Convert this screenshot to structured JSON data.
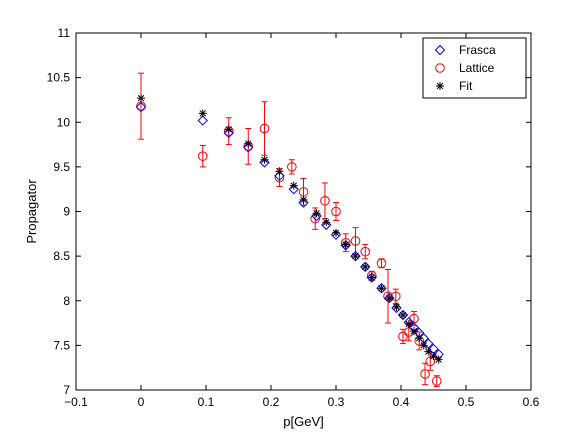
{
  "chart_data": {
    "type": "scatter",
    "xlabel": "p[GeV]",
    "ylabel": "Propagator",
    "xlim": [
      -0.1,
      0.6
    ],
    "ylim": [
      7,
      11
    ],
    "xticks": [
      -0.1,
      0,
      0.1,
      0.2,
      0.3,
      0.4,
      0.5,
      0.6
    ],
    "yticks": [
      7,
      7.5,
      8,
      8.5,
      9,
      9.5,
      10,
      10.5,
      11
    ],
    "xtick_labels": [
      "−0.1",
      "0",
      "0.1",
      "0.2",
      "0.3",
      "0.4",
      "0.5",
      "0.6"
    ],
    "ytick_labels": [
      "7",
      "7.5",
      "8",
      "8.5",
      "9",
      "9.5",
      "10",
      "10.5",
      "11"
    ],
    "grid": false,
    "legend_position": "top-right",
    "series": [
      {
        "name": "Frasca",
        "marker": "diamond",
        "color": "#0000ff",
        "x": [
          0.0,
          0.095,
          0.135,
          0.165,
          0.19,
          0.213,
          0.235,
          0.25,
          0.27,
          0.285,
          0.3,
          0.315,
          0.33,
          0.345,
          0.355,
          0.37,
          0.382,
          0.393,
          0.403,
          0.412,
          0.42,
          0.428,
          0.435,
          0.442,
          0.45,
          0.458
        ],
        "y": [
          10.17,
          10.02,
          9.88,
          9.72,
          9.55,
          9.4,
          9.25,
          9.1,
          8.95,
          8.85,
          8.74,
          8.62,
          8.5,
          8.38,
          8.26,
          8.14,
          8.03,
          7.92,
          7.84,
          7.76,
          7.7,
          7.64,
          7.58,
          7.52,
          7.46,
          7.4
        ]
      },
      {
        "name": "Lattice",
        "marker": "circle",
        "color": "#ff0000",
        "x": [
          0.0,
          0.095,
          0.135,
          0.165,
          0.19,
          0.213,
          0.232,
          0.25,
          0.268,
          0.283,
          0.3,
          0.315,
          0.33,
          0.345,
          0.355,
          0.37,
          0.38,
          0.392,
          0.403,
          0.412,
          0.42,
          0.428,
          0.437,
          0.445,
          0.455
        ],
        "y": [
          10.18,
          9.62,
          9.9,
          9.73,
          9.93,
          9.38,
          9.5,
          9.22,
          8.92,
          9.12,
          9.0,
          8.65,
          8.67,
          8.55,
          8.28,
          8.42,
          8.05,
          8.05,
          7.6,
          7.65,
          7.8,
          7.55,
          7.18,
          7.32,
          7.1
        ],
        "err": [
          0.37,
          0.12,
          0.15,
          0.2,
          0.3,
          0.1,
          0.08,
          0.15,
          0.12,
          0.2,
          0.1,
          0.1,
          0.15,
          0.08,
          0.05,
          0.05,
          0.3,
          0.08,
          0.08,
          0.1,
          0.08,
          0.1,
          0.12,
          0.1,
          0.06
        ]
      },
      {
        "name": "Fit",
        "marker": "asterisk",
        "color": "#000000",
        "x": [
          0.0,
          0.095,
          0.135,
          0.165,
          0.19,
          0.213,
          0.235,
          0.25,
          0.27,
          0.285,
          0.3,
          0.315,
          0.33,
          0.345,
          0.355,
          0.37,
          0.382,
          0.393,
          0.403,
          0.412,
          0.42,
          0.428,
          0.435,
          0.442,
          0.45,
          0.458
        ],
        "y": [
          10.27,
          10.1,
          9.92,
          9.76,
          9.58,
          9.45,
          9.29,
          9.13,
          8.98,
          8.88,
          8.76,
          8.63,
          8.5,
          8.38,
          8.26,
          8.14,
          8.03,
          7.93,
          7.84,
          7.74,
          7.66,
          7.58,
          7.5,
          7.43,
          7.38,
          7.34
        ]
      }
    ]
  }
}
